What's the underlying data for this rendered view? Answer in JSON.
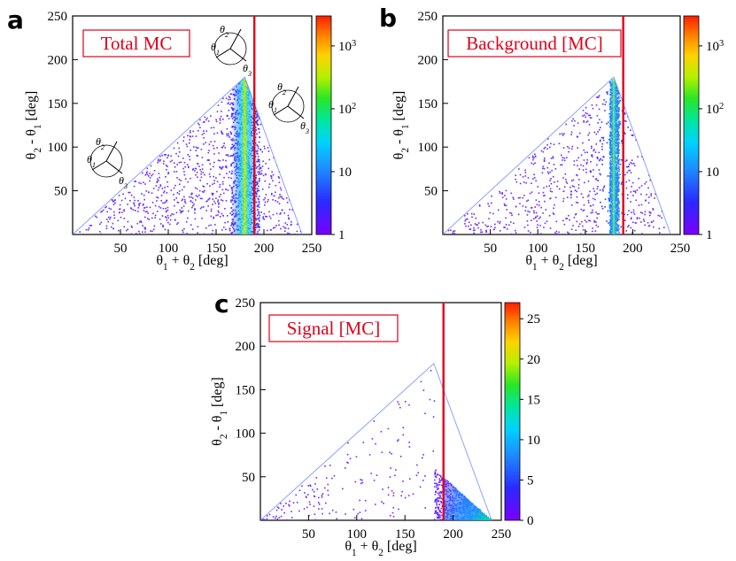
{
  "chart_data": [
    {
      "panel": "a",
      "type": "heatmap",
      "title": "Total MC",
      "xlabel": "θ1 + θ2 [deg]",
      "ylabel": "θ2 - θ1 [deg]",
      "xlim": [
        0,
        250
      ],
      "ylim": [
        0,
        250
      ],
      "x_ticks": [
        50,
        100,
        150,
        200,
        250
      ],
      "y_ticks": [
        50,
        100,
        150,
        200,
        250
      ],
      "cut_line_x": 190,
      "colorbar": {
        "scale": "log",
        "range": [
          1,
          3000
        ],
        "ticks": [
          {
            "value": 1,
            "label": "1"
          },
          {
            "value": 10,
            "label": "10"
          },
          {
            "value": 100,
            "label": "10²"
          },
          {
            "value": 1000,
            "label": "10³"
          }
        ]
      },
      "region": {
        "shape": "triangle",
        "vertices": [
          [
            0,
            0
          ],
          [
            180,
            180
          ],
          [
            240,
            0
          ]
        ]
      },
      "density_peaks": [
        {
          "x": 180,
          "y": 150,
          "label": "dense ridge near θ1+θ2≈180"
        }
      ],
      "angle_labels": [
        "θ2",
        "θ1",
        "θ3"
      ]
    },
    {
      "panel": "b",
      "type": "heatmap",
      "title": "Background [MC]",
      "xlabel": "θ1 + θ2 [deg]",
      "ylabel": "θ2 - θ1 [deg]",
      "xlim": [
        0,
        250
      ],
      "ylim": [
        0,
        250
      ],
      "x_ticks": [
        50,
        100,
        150,
        200,
        250
      ],
      "y_ticks": [
        50,
        100,
        150,
        200,
        250
      ],
      "cut_line_x": 190,
      "colorbar": {
        "scale": "log",
        "range": [
          1,
          3000
        ],
        "ticks": [
          {
            "value": 1,
            "label": "1"
          },
          {
            "value": 10,
            "label": "10"
          },
          {
            "value": 100,
            "label": "10²"
          },
          {
            "value": 1000,
            "label": "10³"
          }
        ]
      },
      "region": {
        "shape": "triangle",
        "vertices": [
          [
            0,
            0
          ],
          [
            180,
            180
          ],
          [
            240,
            0
          ]
        ]
      },
      "density_peaks": [
        {
          "x": 180,
          "y": 120,
          "label": "narrow vertical band at θ1+θ2≈180"
        }
      ]
    },
    {
      "panel": "c",
      "type": "heatmap",
      "title": "Signal [MC]",
      "xlabel": "θ1 + θ2 [deg]",
      "ylabel": "θ2 - θ1 [deg]",
      "xlim": [
        0,
        250
      ],
      "ylim": [
        0,
        250
      ],
      "x_ticks": [
        50,
        100,
        150,
        200,
        250
      ],
      "y_ticks": [
        50,
        100,
        150,
        200,
        250
      ],
      "cut_line_x": 190,
      "colorbar": {
        "scale": "linear",
        "range": [
          0,
          27
        ],
        "ticks": [
          {
            "value": 0,
            "label": "0"
          },
          {
            "value": 5,
            "label": "5"
          },
          {
            "value": 10,
            "label": "10"
          },
          {
            "value": 15,
            "label": "15"
          },
          {
            "value": 20,
            "label": "20"
          },
          {
            "value": 25,
            "label": "25"
          }
        ]
      },
      "region": {
        "shape": "triangle",
        "vertices": [
          [
            0,
            0
          ],
          [
            180,
            180
          ],
          [
            240,
            0
          ]
        ]
      },
      "density_peaks": [
        {
          "x": 225,
          "y": 20,
          "label": "concentrated beyond the cut near the lower-right"
        }
      ]
    }
  ]
}
